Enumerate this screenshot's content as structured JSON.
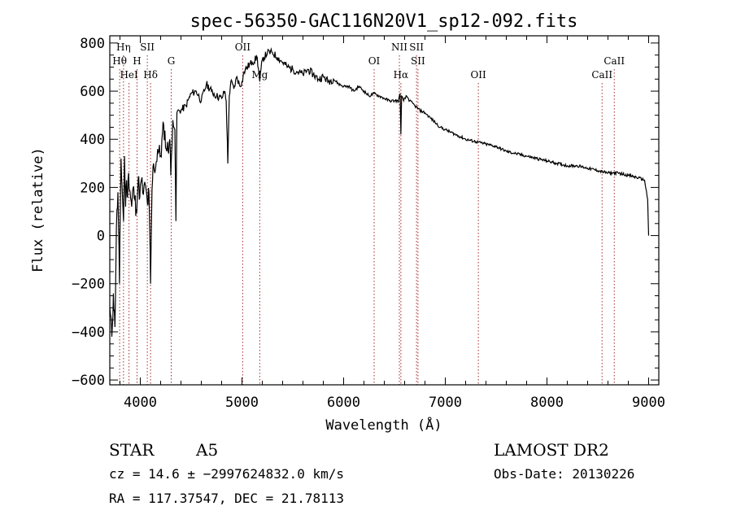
{
  "chart_data": {
    "type": "line",
    "title": "spec-56350-GAC116N20V1_sp12-092.fits",
    "xlabel": "Wavelength (Å)",
    "ylabel": "Flux (relative)",
    "xlim": [
      3700,
      9100
    ],
    "ylim": [
      -620,
      830
    ],
    "xticks": [
      {
        "value": 4000,
        "label": "4000"
      },
      {
        "value": 5000,
        "label": "5000"
      },
      {
        "value": 6000,
        "label": "6000"
      },
      {
        "value": 7000,
        "label": "7000"
      },
      {
        "value": 8000,
        "label": "8000"
      },
      {
        "value": 9000,
        "label": "9000"
      }
    ],
    "yticks": [
      {
        "value": 800,
        "label": "800"
      },
      {
        "value": 600,
        "label": "600"
      },
      {
        "value": 400,
        "label": "400"
      },
      {
        "value": 200,
        "label": "200"
      },
      {
        "value": 0,
        "label": "0"
      },
      {
        "value": -200,
        "label": "−200"
      },
      {
        "value": -400,
        "label": "−400"
      },
      {
        "value": -600,
        "label": "−600"
      }
    ],
    "grid": false,
    "line_color": "#000000",
    "marker_color": "#a52a2a",
    "series": [
      {
        "x": [
          3700,
          3720,
          3735,
          3750,
          3765,
          3780,
          3795,
          3810,
          3825,
          3835,
          3845,
          3855,
          3865,
          3875,
          3885,
          3900,
          3915,
          3930,
          3945,
          3960,
          3970,
          3980,
          3995,
          4010,
          4030,
          4050,
          4070,
          4085,
          4101,
          4115,
          4130,
          4150,
          4170,
          4200,
          4230,
          4260,
          4290,
          4300,
          4320,
          4340,
          4350,
          4360,
          4380,
          4400,
          4450,
          4500,
          4550,
          4600,
          4650,
          4700,
          4750,
          4800,
          4830,
          4845,
          4861,
          4875,
          4890,
          4920,
          4950,
          4980,
          5000,
          5020,
          5050,
          5100,
          5150,
          5175,
          5200,
          5250,
          5300,
          5350,
          5400,
          5450,
          5500,
          5550,
          5600,
          5650,
          5700,
          5750,
          5800,
          5850,
          5900,
          5950,
          6000,
          6050,
          6100,
          6150,
          6200,
          6250,
          6300,
          6350,
          6400,
          6450,
          6500,
          6540,
          6555,
          6563,
          6570,
          6590,
          6620,
          6650,
          6700,
          6750,
          6800,
          6850,
          6900,
          6950,
          7000,
          7100,
          7200,
          7300,
          7400,
          7500,
          7600,
          7700,
          7800,
          7900,
          8000,
          8100,
          8200,
          8300,
          8400,
          8500,
          8600,
          8700,
          8800,
          8900,
          8960,
          8990,
          9000
        ],
        "y": [
          -300,
          -420,
          -240,
          -380,
          30,
          180,
          -200,
          320,
          160,
          60,
          330,
          120,
          230,
          160,
          260,
          180,
          120,
          200,
          150,
          110,
          160,
          240,
          160,
          230,
          170,
          210,
          130,
          180,
          -200,
          190,
          300,
          280,
          360,
          330,
          460,
          350,
          400,
          250,
          480,
          440,
          60,
          510,
          520,
          520,
          540,
          590,
          600,
          560,
          630,
          600,
          580,
          570,
          600,
          560,
          300,
          580,
          640,
          610,
          660,
          620,
          640,
          680,
          700,
          720,
          740,
          640,
          730,
          760,
          760,
          740,
          720,
          700,
          690,
          680,
          670,
          690,
          670,
          650,
          660,
          640,
          650,
          630,
          620,
          620,
          600,
          620,
          600,
          580,
          590,
          580,
          570,
          560,
          560,
          560,
          590,
          420,
          580,
          560,
          580,
          560,
          540,
          520,
          510,
          490,
          470,
          450,
          440,
          420,
          400,
          390,
          380,
          370,
          350,
          340,
          330,
          320,
          310,
          300,
          290,
          290,
          280,
          270,
          260,
          260,
          250,
          240,
          230,
          150,
          0
        ]
      }
    ],
    "line_markers": [
      {
        "name": "Hη",
        "x": 3835,
        "label_row": 0
      },
      {
        "name": "Hθ",
        "x": 3797,
        "label_row": 1
      },
      {
        "name": "HeI",
        "x": 3889,
        "label_row": 2
      },
      {
        "name": "SII",
        "x": 4069,
        "label_row": 0
      },
      {
        "name": "H",
        "x": 3968,
        "label_row": 1
      },
      {
        "name": "Hδ",
        "x": 4101,
        "label_row": 2
      },
      {
        "name": "G",
        "x": 4304,
        "label_row": 1
      },
      {
        "name": "OII",
        "x": 5007,
        "label_row": 0
      },
      {
        "name": "Mg",
        "x": 5175,
        "label_row": 2
      },
      {
        "name": "OI",
        "x": 6300,
        "label_row": 1
      },
      {
        "name": "NII",
        "x": 6548,
        "label_row": 0
      },
      {
        "name": "Hα",
        "x": 6563,
        "label_row": 2
      },
      {
        "name": "SII",
        "x": 6717,
        "label_row": 0
      },
      {
        "name": "SII",
        "x": 6731,
        "label_row": 1
      },
      {
        "name": "OII",
        "x": 7325,
        "label_row": 2
      },
      {
        "name": "CaII",
        "x": 8542,
        "label_row": 2
      },
      {
        "name": "CaII",
        "x": 8662,
        "label_row": 1
      }
    ]
  },
  "info": {
    "object_class": "STAR",
    "subclass": "A5",
    "survey": "LAMOST DR2",
    "cz": "cz = 14.6 ± −2997624832.0 km/s",
    "obs_date": "Obs-Date: 20130226",
    "radec": "RA = 117.37547, DEC =  21.78113"
  }
}
